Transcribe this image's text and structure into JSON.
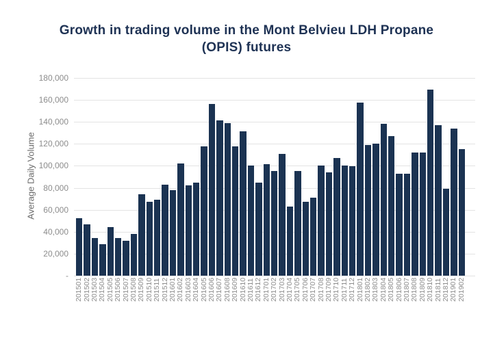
{
  "title": {
    "line1": "Growth in trading volume in the Mont Belvieu LDH Propane",
    "line2": "(OPIS) futures"
  },
  "colors": {
    "bar": "#1b3352",
    "title": "#1e3254",
    "axis_text": "#8c8c8c",
    "axis_title_text": "#6b6b6b",
    "gridline": "#e3e3e3",
    "background": "#ffffff"
  },
  "chart_data": {
    "type": "bar",
    "title": "Growth in trading volume in the Mont Belvieu LDH Propane (OPIS) futures",
    "xlabel": "",
    "ylabel": "Average Daily Volume",
    "ylim": [
      0,
      180000
    ],
    "ytick_interval": 20000,
    "ytick_labels": [
      "-",
      "20,000",
      "40,000",
      "60,000",
      "80,000",
      "100,000",
      "120,000",
      "140,000",
      "160,000",
      "180,000"
    ],
    "grid": true,
    "legend": false,
    "bar_color": "#1b3352",
    "categories": [
      "201501",
      "201502",
      "201503",
      "201504",
      "201505",
      "201506",
      "201507",
      "201508",
      "201509",
      "201510",
      "201511",
      "201512",
      "201601",
      "201602",
      "201603",
      "201604",
      "201605",
      "201606",
      "201607",
      "201608",
      "201609",
      "201610",
      "201611",
      "201612",
      "201701",
      "201702",
      "201703",
      "201704",
      "201705",
      "201706",
      "201707",
      "201708",
      "201709",
      "201710",
      "201711",
      "201712",
      "201801",
      "201802",
      "201803",
      "201804",
      "201805",
      "201806",
      "201807",
      "201808",
      "201809",
      "201810",
      "201811",
      "201812",
      "201901",
      "201902"
    ],
    "values": [
      52500,
      46500,
      34000,
      28500,
      44000,
      34500,
      32000,
      38000,
      74000,
      67500,
      69000,
      83000,
      78000,
      102000,
      82000,
      84500,
      117500,
      156500,
      141500,
      139000,
      118000,
      131500,
      100000,
      84500,
      101500,
      95000,
      111000,
      63000,
      95000,
      67500,
      71000,
      100500,
      94000,
      107000,
      100000,
      99500,
      157500,
      119000,
      120500,
      138000,
      127000,
      92500,
      92500,
      112000,
      112000,
      169500,
      137000,
      79000,
      134000,
      115000
    ]
  }
}
